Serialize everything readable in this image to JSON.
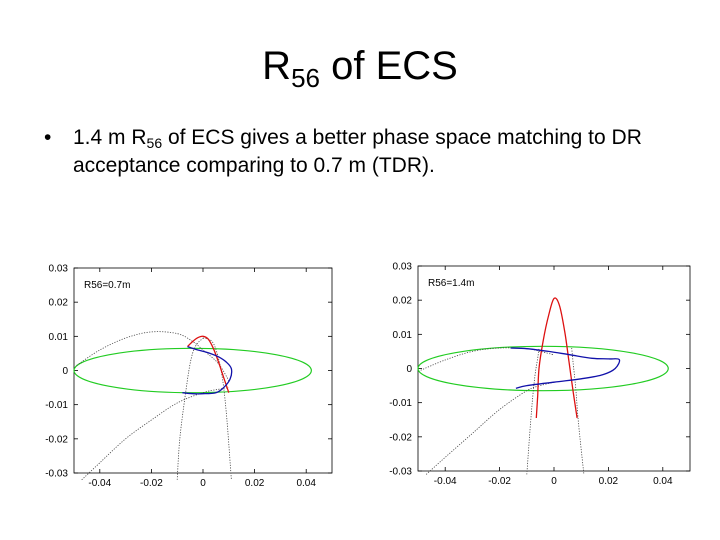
{
  "slide": {
    "title_main": "R",
    "title_sub": "56",
    "title_rest": " of ECS",
    "bullet_marker": "•",
    "bullet_part1": "1.4 m R",
    "bullet_sub": "56",
    "bullet_part2": " of ECS gives a better phase space matching to DR acceptance comparing to 0.7 m (TDR)."
  },
  "chart_data": [
    {
      "type": "line",
      "title": "",
      "annotation": "R56=0.7m",
      "xlabel": "",
      "ylabel": "",
      "xlim": [
        -0.05,
        0.05
      ],
      "ylim": [
        -0.03,
        0.03
      ],
      "xticks": [
        -0.04,
        -0.02,
        0,
        0.02,
        0.04
      ],
      "xtick_labels": [
        "-0.04",
        "-0.02",
        "0",
        "0.02",
        "0.04"
      ],
      "yticks": [
        0.03,
        0.02,
        0.01,
        0,
        -0.01,
        -0.02,
        -0.03
      ],
      "ytick_labels": [
        "0.03",
        "0.02",
        "0.01",
        "0",
        "-0.01",
        "-0.02",
        "-0.03"
      ],
      "grid": false,
      "colors": {
        "acceptance": "#22cc22",
        "red": "#dd1111",
        "blue": "#1111aa",
        "dotted": "#444444"
      },
      "ellipse": {
        "cx": -0.004,
        "cy": 0.0,
        "rx": 0.046,
        "ry": 0.0065
      },
      "series": [
        {
          "style": "dotted",
          "points": [
            [
              -0.049,
              0.0015
            ],
            [
              -0.04,
              0.006
            ],
            [
              -0.03,
              0.0095
            ],
            [
              -0.02,
              0.0113
            ],
            [
              -0.01,
              0.0108
            ],
            [
              -0.004,
              0.0085
            ],
            [
              0.0,
              0.006
            ],
            [
              0.006,
              0.002
            ],
            [
              0.01,
              -0.003
            ]
          ]
        },
        {
          "style": "dotted",
          "points": [
            [
              -0.047,
              -0.032
            ],
            [
              -0.04,
              -0.027
            ],
            [
              -0.03,
              -0.02
            ],
            [
              -0.02,
              -0.0145
            ],
            [
              -0.01,
              -0.0095
            ],
            [
              0.0,
              -0.0065
            ],
            [
              0.006,
              -0.0055
            ],
            [
              0.01,
              -0.005
            ]
          ]
        },
        {
          "style": "dotted",
          "points": [
            [
              -0.01,
              -0.032
            ],
            [
              -0.009,
              -0.02
            ],
            [
              -0.007,
              -0.008
            ],
            [
              -0.005,
              0.002
            ],
            [
              -0.003,
              0.007
            ],
            [
              0.0,
              0.0095
            ]
          ]
        },
        {
          "style": "dotted",
          "points": [
            [
              0.0,
              0.0095
            ],
            [
              0.004,
              0.008
            ],
            [
              0.007,
              0.0
            ],
            [
              0.009,
              -0.012
            ],
            [
              0.011,
              -0.032
            ]
          ]
        },
        {
          "style": "red",
          "points": [
            [
              -0.006,
              0.007
            ],
            [
              -0.004,
              0.0085
            ],
            [
              -0.002,
              0.0096
            ],
            [
              0.0,
              0.01
            ],
            [
              0.002,
              0.0092
            ],
            [
              0.004,
              0.0065
            ],
            [
              0.006,
              0.0025
            ],
            [
              0.008,
              -0.002
            ],
            [
              0.01,
              -0.0065
            ]
          ]
        },
        {
          "style": "blue",
          "points": [
            [
              -0.006,
              0.007
            ],
            [
              -0.003,
              0.0062
            ],
            [
              0.002,
              0.0052
            ],
            [
              0.006,
              0.004
            ],
            [
              0.009,
              0.0025
            ],
            [
              0.011,
              0.0005
            ],
            [
              0.0105,
              -0.0025
            ],
            [
              0.008,
              -0.005
            ],
            [
              0.005,
              -0.0065
            ],
            [
              0.0,
              -0.0068
            ],
            [
              -0.004,
              -0.0068
            ],
            [
              -0.008,
              -0.0065
            ]
          ]
        }
      ]
    },
    {
      "type": "line",
      "title": "",
      "annotation": "R56=1.4m",
      "xlabel": "",
      "ylabel": "",
      "xlim": [
        -0.05,
        0.05
      ],
      "ylim": [
        -0.03,
        0.03
      ],
      "xticks": [
        -0.04,
        -0.02,
        0,
        0.02,
        0.04
      ],
      "xtick_labels": [
        "-0.04",
        "-0.02",
        "0",
        "0.02",
        "0.04"
      ],
      "yticks": [
        0.03,
        0.02,
        0.01,
        0,
        -0.01,
        -0.02,
        -0.03
      ],
      "ytick_labels": [
        "0.03",
        "0.02",
        "0.01",
        "0",
        "-0.01",
        "-0.02",
        "-0.03"
      ],
      "grid": false,
      "colors": {
        "acceptance": "#22cc22",
        "red": "#dd1111",
        "blue": "#1111aa",
        "dotted": "#444444"
      },
      "ellipse": {
        "cx": -0.004,
        "cy": 0.0,
        "rx": 0.046,
        "ry": 0.0065
      },
      "series": [
        {
          "style": "dotted",
          "points": [
            [
              -0.049,
              -0.0005
            ],
            [
              -0.04,
              0.0025
            ],
            [
              -0.03,
              0.005
            ],
            [
              -0.02,
              0.006
            ],
            [
              -0.01,
              0.0058
            ],
            [
              -0.005,
              0.005
            ],
            [
              0.0,
              0.004
            ]
          ]
        },
        {
          "style": "dotted",
          "points": [
            [
              -0.047,
              -0.031
            ],
            [
              -0.04,
              -0.026
            ],
            [
              -0.03,
              -0.019
            ],
            [
              -0.02,
              -0.012
            ],
            [
              -0.01,
              -0.0065
            ],
            [
              -0.005,
              -0.005
            ],
            [
              0.0,
              -0.004
            ]
          ]
        },
        {
          "style": "dotted",
          "points": [
            [
              -0.01,
              -0.031
            ],
            [
              -0.009,
              -0.02
            ],
            [
              -0.008,
              -0.01
            ],
            [
              -0.007,
              -0.002
            ],
            [
              -0.006,
              0.003
            ],
            [
              -0.0055,
              0.006
            ]
          ]
        },
        {
          "style": "dotted",
          "points": [
            [
              0.0065,
              0.006
            ],
            [
              0.007,
              0.002
            ],
            [
              0.008,
              -0.006
            ],
            [
              0.009,
              -0.016
            ],
            [
              0.011,
              -0.031
            ]
          ]
        },
        {
          "style": "red",
          "points": [
            [
              -0.0065,
              -0.0145
            ],
            [
              -0.006,
              -0.008
            ],
            [
              -0.0055,
              0.0
            ],
            [
              -0.004,
              0.008
            ],
            [
              -0.002,
              0.0155
            ],
            [
              0.0,
              0.0205
            ],
            [
              0.002,
              0.0185
            ],
            [
              0.004,
              0.0105
            ],
            [
              0.0055,
              0.002
            ],
            [
              0.007,
              -0.0065
            ],
            [
              0.0085,
              -0.0145
            ]
          ]
        },
        {
          "style": "blue",
          "points": [
            [
              -0.016,
              0.006
            ],
            [
              -0.01,
              0.0058
            ],
            [
              -0.002,
              0.005
            ],
            [
              0.006,
              0.004
            ],
            [
              0.014,
              0.003
            ],
            [
              0.02,
              0.0028
            ],
            [
              0.024,
              0.0026
            ],
            [
              0.0225,
              0.0
            ],
            [
              0.018,
              -0.0018
            ],
            [
              0.01,
              -0.003
            ],
            [
              0.0,
              -0.004
            ],
            [
              -0.01,
              -0.005
            ],
            [
              -0.014,
              -0.0058
            ]
          ]
        }
      ]
    }
  ]
}
